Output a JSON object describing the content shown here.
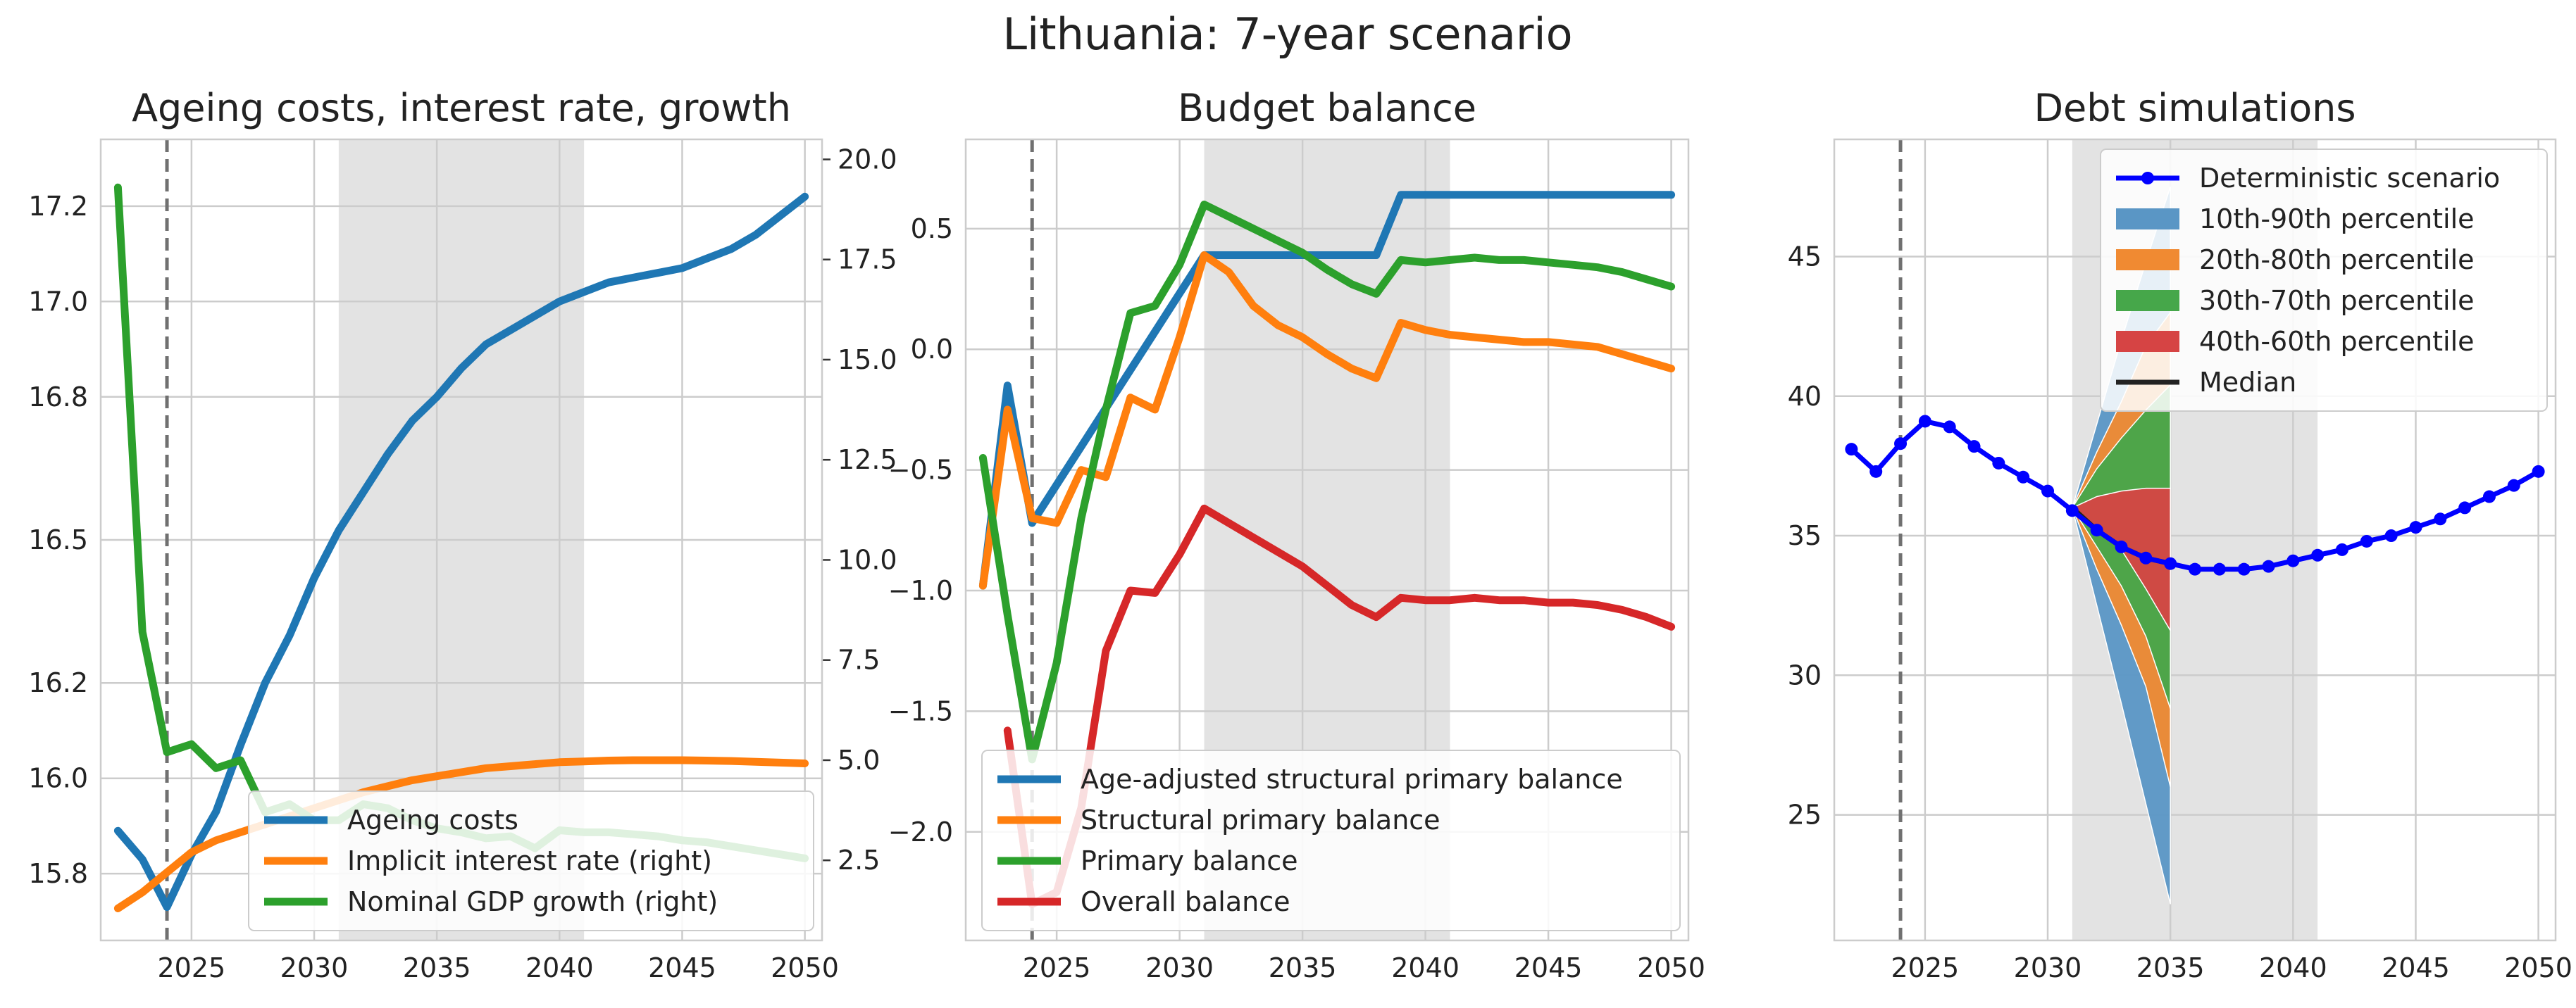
{
  "suptitle": "Lithuania: 7-year scenario",
  "chart_data": [
    {
      "type": "line",
      "title": "Ageing costs, interest rate, growth",
      "xlim": [
        2021.3,
        2050.7
      ],
      "xticks": [
        2025,
        2030,
        2035,
        2040,
        2045,
        2050
      ],
      "ylim_left": [
        15.66,
        17.34
      ],
      "yticks_left": [
        15.8,
        16.0,
        16.2,
        16.5,
        16.8,
        17.0,
        17.2
      ],
      "ytick_labels_left": [
        "15.8",
        "16.0",
        "16.2",
        "16.5",
        "16.8",
        "17.0",
        "17.2"
      ],
      "ylim_right": [
        0.5,
        20.5
      ],
      "yticks_right": [
        2.5,
        5.0,
        7.5,
        10.0,
        12.5,
        15.0,
        17.5,
        20.0
      ],
      "ytick_labels_right": [
        "2.5",
        "5.0",
        "7.5",
        "10.0",
        "12.5",
        "15.0",
        "17.5",
        "20.0"
      ],
      "vline": 2024,
      "shaded_region": [
        2031,
        2041
      ],
      "grid": true,
      "legend_position": "lower-right",
      "series": [
        {
          "name": "Ageing costs",
          "axis": "left",
          "color": "#1f77b4",
          "x": [
            2022,
            2023,
            2024,
            2025,
            2026,
            2027,
            2028,
            2029,
            2030,
            2031,
            2032,
            2033,
            2034,
            2035,
            2036,
            2037,
            2038,
            2039,
            2040,
            2041,
            2042,
            2043,
            2044,
            2045,
            2046,
            2047,
            2048,
            2049,
            2050
          ],
          "y": [
            15.89,
            15.83,
            15.73,
            15.84,
            15.93,
            16.07,
            16.2,
            16.3,
            16.42,
            16.52,
            16.6,
            16.68,
            16.75,
            16.8,
            16.86,
            16.91,
            16.94,
            16.97,
            17.0,
            17.02,
            17.04,
            17.05,
            17.06,
            17.07,
            17.09,
            17.11,
            17.14,
            17.18,
            17.22
          ]
        },
        {
          "name": "Implicit interest rate (right)",
          "axis": "right",
          "color": "#ff7f0e",
          "x": [
            2022,
            2023,
            2024,
            2025,
            2026,
            2027,
            2028,
            2029,
            2030,
            2031,
            2032,
            2033,
            2034,
            2035,
            2036,
            2037,
            2038,
            2039,
            2040,
            2041,
            2042,
            2043,
            2044,
            2045,
            2046,
            2047,
            2048,
            2049,
            2050
          ],
          "y": [
            1.3,
            1.7,
            2.2,
            2.7,
            3.0,
            3.2,
            3.4,
            3.6,
            3.8,
            4.0,
            4.2,
            4.35,
            4.5,
            4.6,
            4.7,
            4.8,
            4.85,
            4.9,
            4.95,
            4.97,
            4.99,
            5.0,
            5.0,
            5.0,
            4.99,
            4.98,
            4.96,
            4.94,
            4.92
          ]
        },
        {
          "name": "Nominal GDP growth (right)",
          "axis": "right",
          "color": "#2ca02c",
          "x": [
            2022,
            2023,
            2024,
            2025,
            2026,
            2027,
            2028,
            2029,
            2030,
            2031,
            2032,
            2033,
            2034,
            2035,
            2036,
            2037,
            2038,
            2039,
            2040,
            2041,
            2042,
            2043,
            2044,
            2045,
            2046,
            2047,
            2048,
            2049,
            2050
          ],
          "y": [
            19.3,
            8.2,
            5.2,
            5.4,
            4.8,
            5.0,
            3.7,
            3.9,
            3.5,
            3.5,
            3.9,
            3.8,
            3.5,
            3.3,
            3.2,
            3.05,
            3.1,
            2.8,
            3.25,
            3.2,
            3.2,
            3.15,
            3.1,
            3.0,
            2.95,
            2.85,
            2.75,
            2.65,
            2.55
          ]
        }
      ]
    },
    {
      "type": "line",
      "title": "Budget balance",
      "xlim": [
        2021.3,
        2050.7
      ],
      "xticks": [
        2025,
        2030,
        2035,
        2040,
        2045,
        2050
      ],
      "ylim": [
        -2.45,
        0.87
      ],
      "yticks": [
        -2.0,
        -1.5,
        -1.0,
        -0.5,
        0.0,
        0.5
      ],
      "ytick_labels": [
        "−2.0",
        "−1.5",
        "−1.0",
        "−0.5",
        "0.0",
        "0.5"
      ],
      "vline": 2024,
      "shaded_region": [
        2031,
        2041
      ],
      "grid": true,
      "legend_position": "lower-right",
      "series": [
        {
          "name": "Age-adjusted structural primary balance",
          "color": "#1f77b4",
          "x": [
            2022,
            2023,
            2024,
            2031,
            2032,
            2033,
            2034,
            2035,
            2036,
            2037,
            2038,
            2039,
            2040,
            2041,
            2042,
            2043,
            2044,
            2045,
            2046,
            2047,
            2048,
            2049,
            2050
          ],
          "y": [
            -0.98,
            -0.15,
            -0.72,
            0.39,
            0.39,
            0.39,
            0.39,
            0.39,
            0.39,
            0.39,
            0.39,
            0.64,
            0.64,
            0.64,
            0.64,
            0.64,
            0.64,
            0.64,
            0.64,
            0.64,
            0.64,
            0.64,
            0.64
          ]
        },
        {
          "name": "Structural primary balance",
          "color": "#ff7f0e",
          "x": [
            2022,
            2023,
            2024,
            2025,
            2026,
            2027,
            2028,
            2029,
            2030,
            2031,
            2032,
            2033,
            2034,
            2035,
            2036,
            2037,
            2038,
            2039,
            2040,
            2041,
            2042,
            2043,
            2044,
            2045,
            2046,
            2047,
            2048,
            2049,
            2050
          ],
          "y": [
            -0.98,
            -0.25,
            -0.7,
            -0.72,
            -0.5,
            -0.53,
            -0.2,
            -0.25,
            0.05,
            0.39,
            0.32,
            0.18,
            0.1,
            0.05,
            -0.02,
            -0.08,
            -0.12,
            0.11,
            0.08,
            0.06,
            0.05,
            0.04,
            0.03,
            0.03,
            0.02,
            0.01,
            -0.02,
            -0.05,
            -0.08
          ]
        },
        {
          "name": "Primary balance",
          "color": "#2ca02c",
          "x": [
            2022,
            2023,
            2024,
            2025,
            2026,
            2027,
            2028,
            2029,
            2030,
            2031,
            2032,
            2033,
            2034,
            2035,
            2036,
            2037,
            2038,
            2039,
            2040,
            2041,
            2042,
            2043,
            2044,
            2045,
            2046,
            2047,
            2048,
            2049,
            2050
          ],
          "y": [
            -0.45,
            -1.1,
            -1.7,
            -1.3,
            -0.7,
            -0.25,
            0.15,
            0.18,
            0.35,
            0.6,
            0.55,
            0.5,
            0.45,
            0.4,
            0.33,
            0.27,
            0.23,
            0.37,
            0.36,
            0.37,
            0.38,
            0.37,
            0.37,
            0.36,
            0.35,
            0.34,
            0.32,
            0.29,
            0.26
          ]
        },
        {
          "name": "Overall balance",
          "color": "#d62728",
          "x": [
            2022,
            2023,
            2024,
            2025,
            2026,
            2027,
            2028,
            2029,
            2030,
            2031,
            2032,
            2033,
            2034,
            2035,
            2036,
            2037,
            2038,
            2039,
            2040,
            2041,
            2042,
            2043,
            2044,
            2045,
            2046,
            2047,
            2048,
            2049,
            2050
          ],
          "y": [
            null,
            -1.58,
            -2.3,
            -2.25,
            -1.9,
            -1.25,
            -1.0,
            -1.01,
            -0.85,
            -0.66,
            -0.72,
            -0.78,
            -0.84,
            -0.9,
            -0.98,
            -1.06,
            -1.11,
            -1.03,
            -1.04,
            -1.04,
            -1.03,
            -1.04,
            -1.04,
            -1.05,
            -1.05,
            -1.06,
            -1.08,
            -1.11,
            -1.15
          ]
        }
      ]
    },
    {
      "type": "area",
      "title": "Debt simulations",
      "xlim": [
        2021.3,
        2050.7
      ],
      "xticks": [
        2025,
        2030,
        2035,
        2040,
        2045,
        2050
      ],
      "ylim": [
        20.5,
        49.2
      ],
      "yticks": [
        25,
        30,
        35,
        40,
        45
      ],
      "ytick_labels": [
        "25",
        "30",
        "35",
        "40",
        "45"
      ],
      "vline": 2024,
      "shaded_region": [
        2031,
        2041
      ],
      "grid": true,
      "legend_position": "upper-right",
      "fan_x": [
        2031,
        2032,
        2033,
        2034,
        2035
      ],
      "fan_bands": [
        {
          "name": "10th-90th percentile",
          "color": "#5a96c5",
          "lower": [
            36.0,
            32.5,
            29.0,
            25.4,
            21.8
          ],
          "upper": [
            36.0,
            39.0,
            42.0,
            44.8,
            47.5
          ]
        },
        {
          "name": "20th-80th percentile",
          "color": "#f08a32",
          "lower": [
            36.0,
            33.8,
            31.8,
            29.6,
            26.0
          ],
          "upper": [
            36.0,
            38.0,
            39.8,
            41.8,
            43.0
          ]
        },
        {
          "name": "30th-70th percentile",
          "color": "#46a74a",
          "lower": [
            36.0,
            34.6,
            33.2,
            31.4,
            28.8
          ],
          "upper": [
            36.0,
            37.4,
            38.5,
            39.5,
            40.4
          ]
        },
        {
          "name": "40th-60th percentile",
          "color": "#d64444",
          "lower": [
            36.0,
            35.3,
            34.5,
            33.1,
            31.6
          ],
          "upper": [
            36.0,
            36.4,
            36.6,
            36.7,
            36.7
          ]
        }
      ],
      "median": {
        "name": "Median",
        "x": [
          2031,
          2032,
          2033,
          2034,
          2035
        ],
        "y": [
          36.0,
          35.2,
          34.6,
          34.2,
          34.0
        ]
      },
      "deterministic": {
        "name": "Deterministic scenario",
        "color": "#0000ff",
        "x": [
          2022,
          2023,
          2024,
          2025,
          2026,
          2027,
          2028,
          2029,
          2030,
          2031,
          2032,
          2033,
          2034,
          2035,
          2036,
          2037,
          2038,
          2039,
          2040,
          2041,
          2042,
          2043,
          2044,
          2045,
          2046,
          2047,
          2048,
          2049,
          2050
        ],
        "y": [
          38.1,
          37.3,
          38.3,
          39.1,
          38.9,
          38.2,
          37.6,
          37.1,
          36.6,
          35.9,
          35.2,
          34.6,
          34.2,
          34.0,
          33.8,
          33.8,
          33.8,
          33.9,
          34.1,
          34.3,
          34.5,
          34.8,
          35.0,
          35.3,
          35.6,
          36.0,
          36.4,
          36.8,
          37.3
        ]
      }
    }
  ]
}
